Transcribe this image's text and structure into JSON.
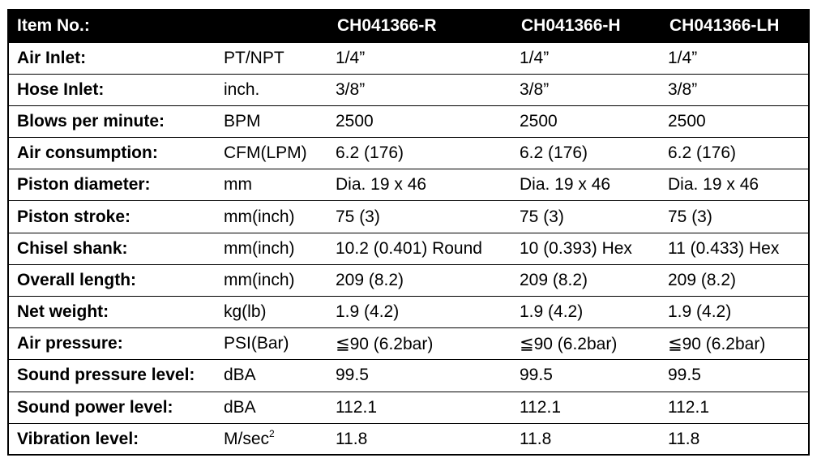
{
  "header": {
    "label": "Item No.:",
    "unit": "",
    "models": [
      "CH041366-R",
      "CH041366-H",
      "CH041366-LH"
    ]
  },
  "rows": [
    {
      "name": "Air Inlet:",
      "unit": "PT/NPT",
      "values": [
        "1/4”",
        "1/4”",
        "1/4”"
      ]
    },
    {
      "name": "Hose Inlet:",
      "unit": "inch.",
      "values": [
        "3/8”",
        "3/8”",
        "3/8”"
      ]
    },
    {
      "name": "Blows per minute:",
      "unit": "BPM",
      "values": [
        "2500",
        "2500",
        "2500"
      ]
    },
    {
      "name": "Air consumption:",
      "unit": "CFM(LPM)",
      "values": [
        "6.2 (176)",
        "6.2 (176)",
        "6.2 (176)"
      ]
    },
    {
      "name": "Piston diameter:",
      "unit": "mm",
      "values": [
        "Dia. 19 x 46",
        "Dia. 19 x 46",
        "Dia. 19 x 46"
      ]
    },
    {
      "name": "Piston stroke:",
      "unit": "mm(inch)",
      "values": [
        "75 (3)",
        "75 (3)",
        "75 (3)"
      ]
    },
    {
      "name": "Chisel shank:",
      "unit": "mm(inch)",
      "values": [
        "10.2 (0.401) Round",
        "10 (0.393) Hex",
        "11 (0.433) Hex"
      ]
    },
    {
      "name": "Overall length:",
      "unit": "mm(inch)",
      "values": [
        "209 (8.2)",
        "209 (8.2)",
        "209 (8.2)"
      ]
    },
    {
      "name": "Net weight:",
      "unit": "kg(lb)",
      "values": [
        "1.9 (4.2)",
        "1.9 (4.2)",
        "1.9 (4.2)"
      ]
    },
    {
      "name": "Air pressure:",
      "unit": "PSI(Bar)",
      "values": [
        "≦90 (6.2bar)",
        "≦90 (6.2bar)",
        "≦90 (6.2bar)"
      ]
    },
    {
      "name": "Sound pressure level:",
      "unit": "dBA",
      "values": [
        "99.5",
        "99.5",
        "99.5"
      ]
    },
    {
      "name": "Sound power level:",
      "unit": "dBA",
      "values": [
        "112.1",
        "112.1",
        "112.1"
      ]
    },
    {
      "name": "Vibration level:",
      "unit": "M/sec",
      "unit_sup": "2",
      "values": [
        "11.8",
        "11.8",
        "11.8"
      ]
    }
  ]
}
